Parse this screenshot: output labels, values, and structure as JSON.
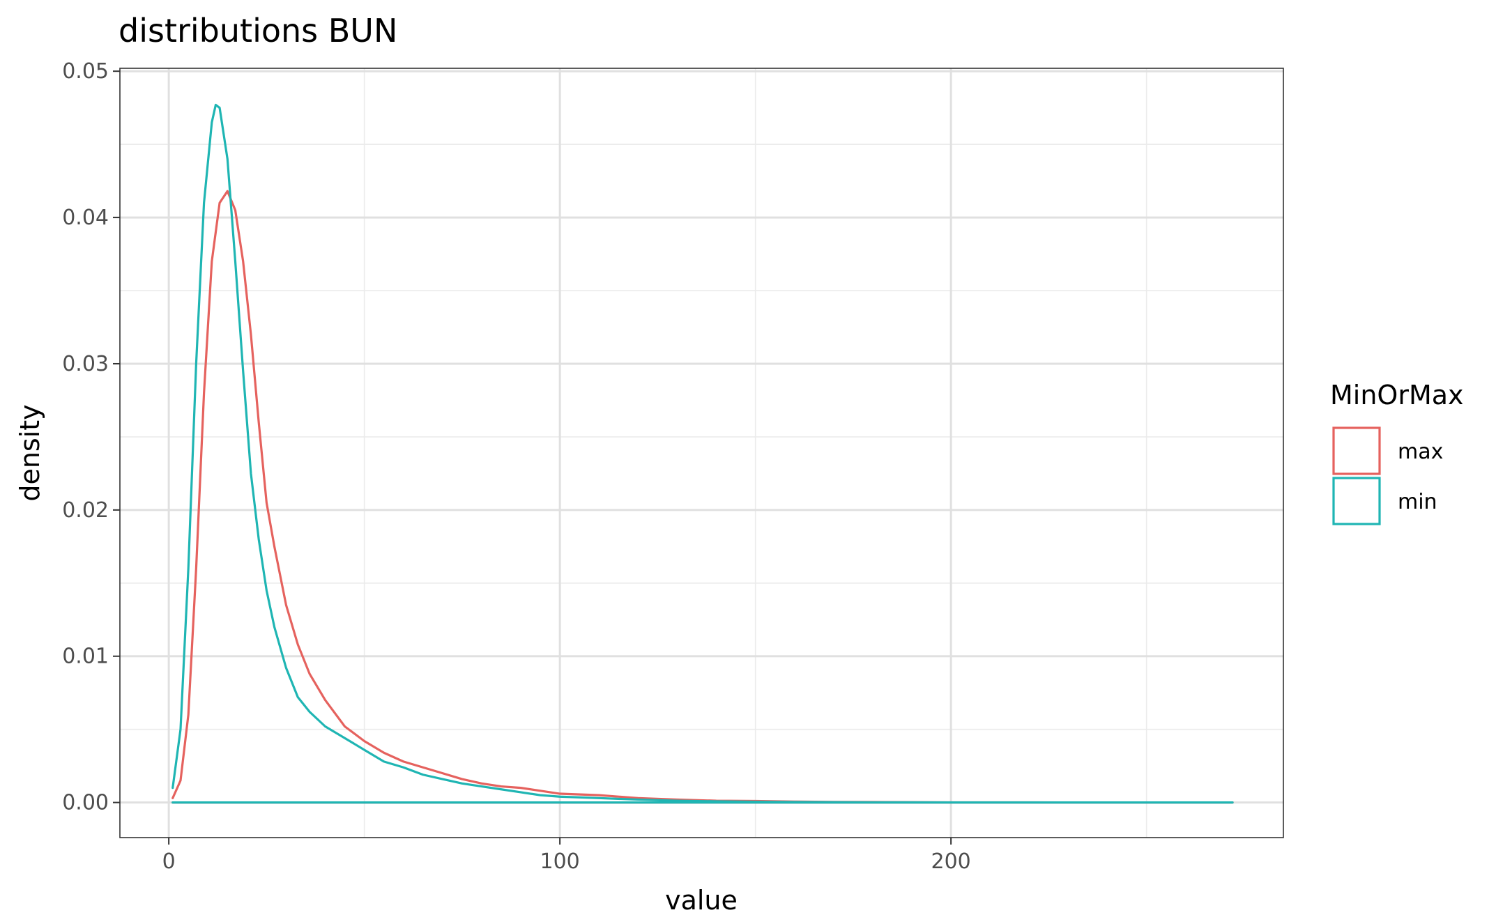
{
  "chart_data": {
    "type": "line",
    "title": "distributions BUN",
    "xlabel": "value",
    "ylabel": "density",
    "xlim": [
      -12.5,
      285
    ],
    "ylim": [
      -0.0024,
      0.0502
    ],
    "x_ticks": [
      0,
      100,
      200
    ],
    "x_tick_labels": [
      "0",
      "100",
      "200"
    ],
    "y_ticks": [
      0,
      0.01,
      0.02,
      0.03,
      0.04,
      0.05
    ],
    "y_tick_labels": [
      "0.00",
      "0.01",
      "0.02",
      "0.03",
      "0.04",
      "0.05"
    ],
    "grid": true,
    "legend": {
      "title": "MinOrMax",
      "position": "right"
    },
    "series": [
      {
        "name": "max",
        "color": "#e5625e",
        "x": [
          1,
          3,
          5,
          7,
          9,
          11,
          13,
          15,
          17,
          19,
          21,
          23,
          25,
          27,
          30,
          33,
          36,
          40,
          45,
          50,
          55,
          60,
          65,
          70,
          75,
          80,
          85,
          90,
          95,
          100,
          110,
          120,
          130,
          140,
          150,
          160,
          170,
          180,
          190,
          200,
          220,
          240,
          260,
          272,
          1
        ],
        "y": [
          0.0003,
          0.0015,
          0.006,
          0.016,
          0.028,
          0.037,
          0.041,
          0.0418,
          0.0405,
          0.037,
          0.032,
          0.026,
          0.0205,
          0.0175,
          0.0135,
          0.0108,
          0.0088,
          0.007,
          0.0052,
          0.0042,
          0.0034,
          0.0028,
          0.0024,
          0.002,
          0.0016,
          0.0013,
          0.0011,
          0.001,
          0.0008,
          0.0006,
          0.0005,
          0.0003,
          0.0002,
          0.00012,
          0.0001,
          6e-05,
          4e-05,
          3e-05,
          2e-05,
          1e-05,
          5e-06,
          2e-06,
          1e-06,
          0,
          0
        ]
      },
      {
        "name": "min",
        "color": "#1fb5b3",
        "x": [
          1,
          3,
          5,
          7,
          9,
          11,
          12,
          13,
          15,
          17,
          19,
          21,
          23,
          25,
          27,
          30,
          33,
          36,
          40,
          45,
          50,
          55,
          60,
          65,
          70,
          75,
          80,
          85,
          90,
          95,
          100,
          110,
          120,
          130,
          140,
          150,
          160,
          170,
          180,
          190,
          200,
          220,
          240,
          260,
          272,
          1
        ],
        "y": [
          0.001,
          0.005,
          0.016,
          0.03,
          0.041,
          0.0465,
          0.0477,
          0.0475,
          0.044,
          0.037,
          0.0295,
          0.0225,
          0.018,
          0.0145,
          0.012,
          0.0092,
          0.0072,
          0.0062,
          0.0052,
          0.0044,
          0.0036,
          0.0028,
          0.0024,
          0.0019,
          0.0016,
          0.0013,
          0.0011,
          0.0009,
          0.0007,
          0.0005,
          0.0004,
          0.0003,
          0.0002,
          0.00012,
          8e-05,
          5e-05,
          3e-05,
          2e-05,
          1e-05,
          6e-06,
          3e-06,
          1e-06,
          0,
          0,
          0,
          0
        ]
      }
    ]
  }
}
